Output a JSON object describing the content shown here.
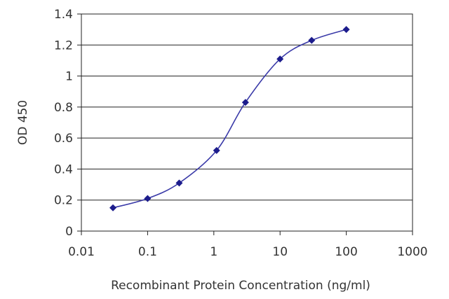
{
  "chart_data": {
    "type": "line",
    "xlabel": "Recombinant Protein Concentration (ng/ml)",
    "ylabel": "OD 450",
    "x_scale": "log",
    "xlim": [
      0.01,
      1000
    ],
    "ylim": [
      0,
      1.4
    ],
    "x_ticks": [
      "0.01",
      "0.1",
      "1",
      "10",
      "100",
      "1000"
    ],
    "y_ticks": [
      "0",
      "0.2",
      "0.4",
      "0.6",
      "0.8",
      "1",
      "1.2",
      "1.4"
    ],
    "grid": "horizontal",
    "series": [
      {
        "color": "#1c1c8c",
        "x": [
          0.03,
          0.1,
          0.3,
          1.1,
          3,
          10,
          30,
          100
        ],
        "y": [
          0.15,
          0.21,
          0.31,
          0.52,
          0.83,
          1.11,
          1.23,
          1.3
        ]
      }
    ]
  }
}
